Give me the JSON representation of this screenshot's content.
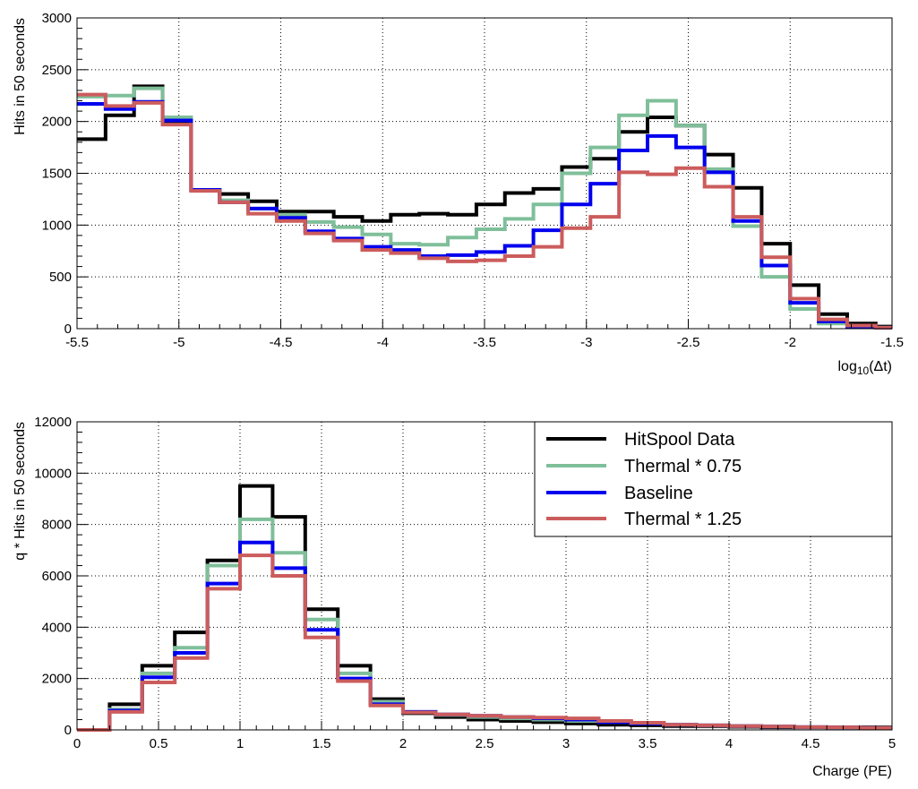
{
  "colors": {
    "hitspool": "#000000",
    "thermal075": "#7fbf9a",
    "baseline": "#0000ee",
    "thermal125": "#cc5c5c"
  },
  "chart_data": [
    {
      "type": "line",
      "style": "step-histogram",
      "xlabel": "log10(Δt)",
      "xlabel_main": "log",
      "xlabel_sub": "10",
      "xlabel_tail": "(Δt)",
      "ylabel": "Hits in 50 seconds",
      "xlim": [
        -5.5,
        -1.5
      ],
      "ylim": [
        0,
        3000
      ],
      "grid": true,
      "x_ticks": [
        -5.5,
        -5,
        -4.5,
        -4,
        -3.5,
        -3,
        -2.5,
        -2,
        -1.5
      ],
      "x_tick_labels": [
        "-5.5",
        "-5",
        "-4.5",
        "-4",
        "-3.5",
        "-3",
        "-2.5",
        "-2",
        "-1.5"
      ],
      "y_ticks": [
        0,
        500,
        1000,
        1500,
        2000,
        2500,
        3000
      ],
      "y_tick_labels": [
        "0",
        "500",
        "1000",
        "1500",
        "2000",
        "2500",
        "3000"
      ],
      "bin_edges": [
        -5.5,
        -5.36,
        -5.22,
        -5.08,
        -4.94,
        -4.8,
        -4.66,
        -4.52,
        -4.38,
        -4.24,
        -4.1,
        -3.96,
        -3.82,
        -3.68,
        -3.54,
        -3.4,
        -3.26,
        -3.12,
        -2.98,
        -2.84,
        -2.7,
        -2.56,
        -2.42,
        -2.28,
        -2.14,
        -2.0,
        -1.86,
        -1.72,
        -1.58,
        -1.5
      ],
      "series": [
        {
          "name": "HitSpool Data",
          "color_key": "hitspool",
          "values": [
            1830,
            2060,
            2340,
            2000,
            1340,
            1300,
            1230,
            1130,
            1130,
            1080,
            1040,
            1100,
            1110,
            1100,
            1200,
            1310,
            1350,
            1560,
            1640,
            1900,
            2040,
            1960,
            1680,
            1360,
            820,
            420,
            140,
            50,
            20
          ]
        },
        {
          "name": "Thermal * 0.75",
          "color_key": "thermal075",
          "values": [
            2240,
            2250,
            2320,
            2040,
            1340,
            1240,
            1160,
            1100,
            1030,
            980,
            910,
            820,
            810,
            880,
            960,
            1060,
            1200,
            1500,
            1750,
            2060,
            2200,
            1960,
            1540,
            990,
            500,
            190,
            50,
            20,
            10
          ]
        },
        {
          "name": "Baseline",
          "color_key": "baseline",
          "values": [
            2170,
            2120,
            2190,
            2010,
            1340,
            1220,
            1160,
            1070,
            940,
            870,
            790,
            760,
            700,
            710,
            740,
            800,
            950,
            1200,
            1400,
            1720,
            1860,
            1750,
            1510,
            1040,
            610,
            250,
            70,
            20,
            10
          ]
        },
        {
          "name": "Thermal * 1.25",
          "color_key": "thermal125",
          "values": [
            2260,
            2150,
            2180,
            1970,
            1330,
            1220,
            1110,
            1040,
            920,
            850,
            760,
            730,
            680,
            650,
            660,
            700,
            790,
            970,
            1080,
            1510,
            1490,
            1550,
            1370,
            1080,
            690,
            290,
            90,
            30,
            10
          ]
        }
      ]
    },
    {
      "type": "line",
      "style": "step-histogram",
      "xlabel": "Charge (PE)",
      "ylabel": "q * Hits in 50 seconds",
      "xlim": [
        0,
        5
      ],
      "ylim": [
        0,
        12000
      ],
      "grid": true,
      "legend_position": "top-right",
      "x_ticks": [
        0,
        0.5,
        1,
        1.5,
        2,
        2.5,
        3,
        3.5,
        4,
        4.5,
        5
      ],
      "x_tick_labels": [
        "0",
        "0.5",
        "1",
        "1.5",
        "2",
        "2.5",
        "3",
        "3.5",
        "4",
        "4.5",
        "5"
      ],
      "y_ticks": [
        0,
        2000,
        4000,
        6000,
        8000,
        10000,
        12000
      ],
      "y_tick_labels": [
        "0",
        "2000",
        "4000",
        "6000",
        "8000",
        "10000",
        "12000"
      ],
      "bin_edges": [
        0,
        0.2,
        0.4,
        0.6,
        0.8,
        1.0,
        1.2,
        1.4,
        1.6,
        1.8,
        2.0,
        2.2,
        2.4,
        2.6,
        2.8,
        3.0,
        3.2,
        3.4,
        3.6,
        3.8,
        4.0,
        4.2,
        4.4,
        4.6,
        4.8,
        5.0
      ],
      "series": [
        {
          "name": "HitSpool Data",
          "color_key": "hitspool",
          "values": [
            0,
            1000,
            2500,
            3800,
            6600,
            9500,
            8300,
            4700,
            2500,
            1200,
            650,
            500,
            400,
            350,
            300,
            250,
            200,
            180,
            150,
            150,
            120,
            100,
            100,
            100,
            100
          ]
        },
        {
          "name": "Thermal * 0.75",
          "color_key": "thermal075",
          "values": [
            0,
            800,
            2200,
            3200,
            6400,
            8200,
            6900,
            4300,
            2200,
            1100,
            700,
            580,
            500,
            450,
            400,
            350,
            300,
            250,
            200,
            180,
            150,
            130,
            110,
            100,
            80
          ]
        },
        {
          "name": "Baseline",
          "color_key": "baseline",
          "values": [
            0,
            750,
            2050,
            3000,
            5700,
            7300,
            6300,
            3900,
            2000,
            1000,
            700,
            600,
            550,
            500,
            450,
            400,
            300,
            250,
            200,
            180,
            150,
            130,
            110,
            100,
            80
          ]
        },
        {
          "name": "Thermal * 1.25",
          "color_key": "thermal125",
          "values": [
            0,
            700,
            1850,
            2800,
            5500,
            6800,
            6000,
            3600,
            1900,
            950,
            680,
            600,
            550,
            500,
            480,
            450,
            350,
            280,
            200,
            180,
            150,
            130,
            110,
            100,
            80
          ]
        }
      ]
    }
  ]
}
